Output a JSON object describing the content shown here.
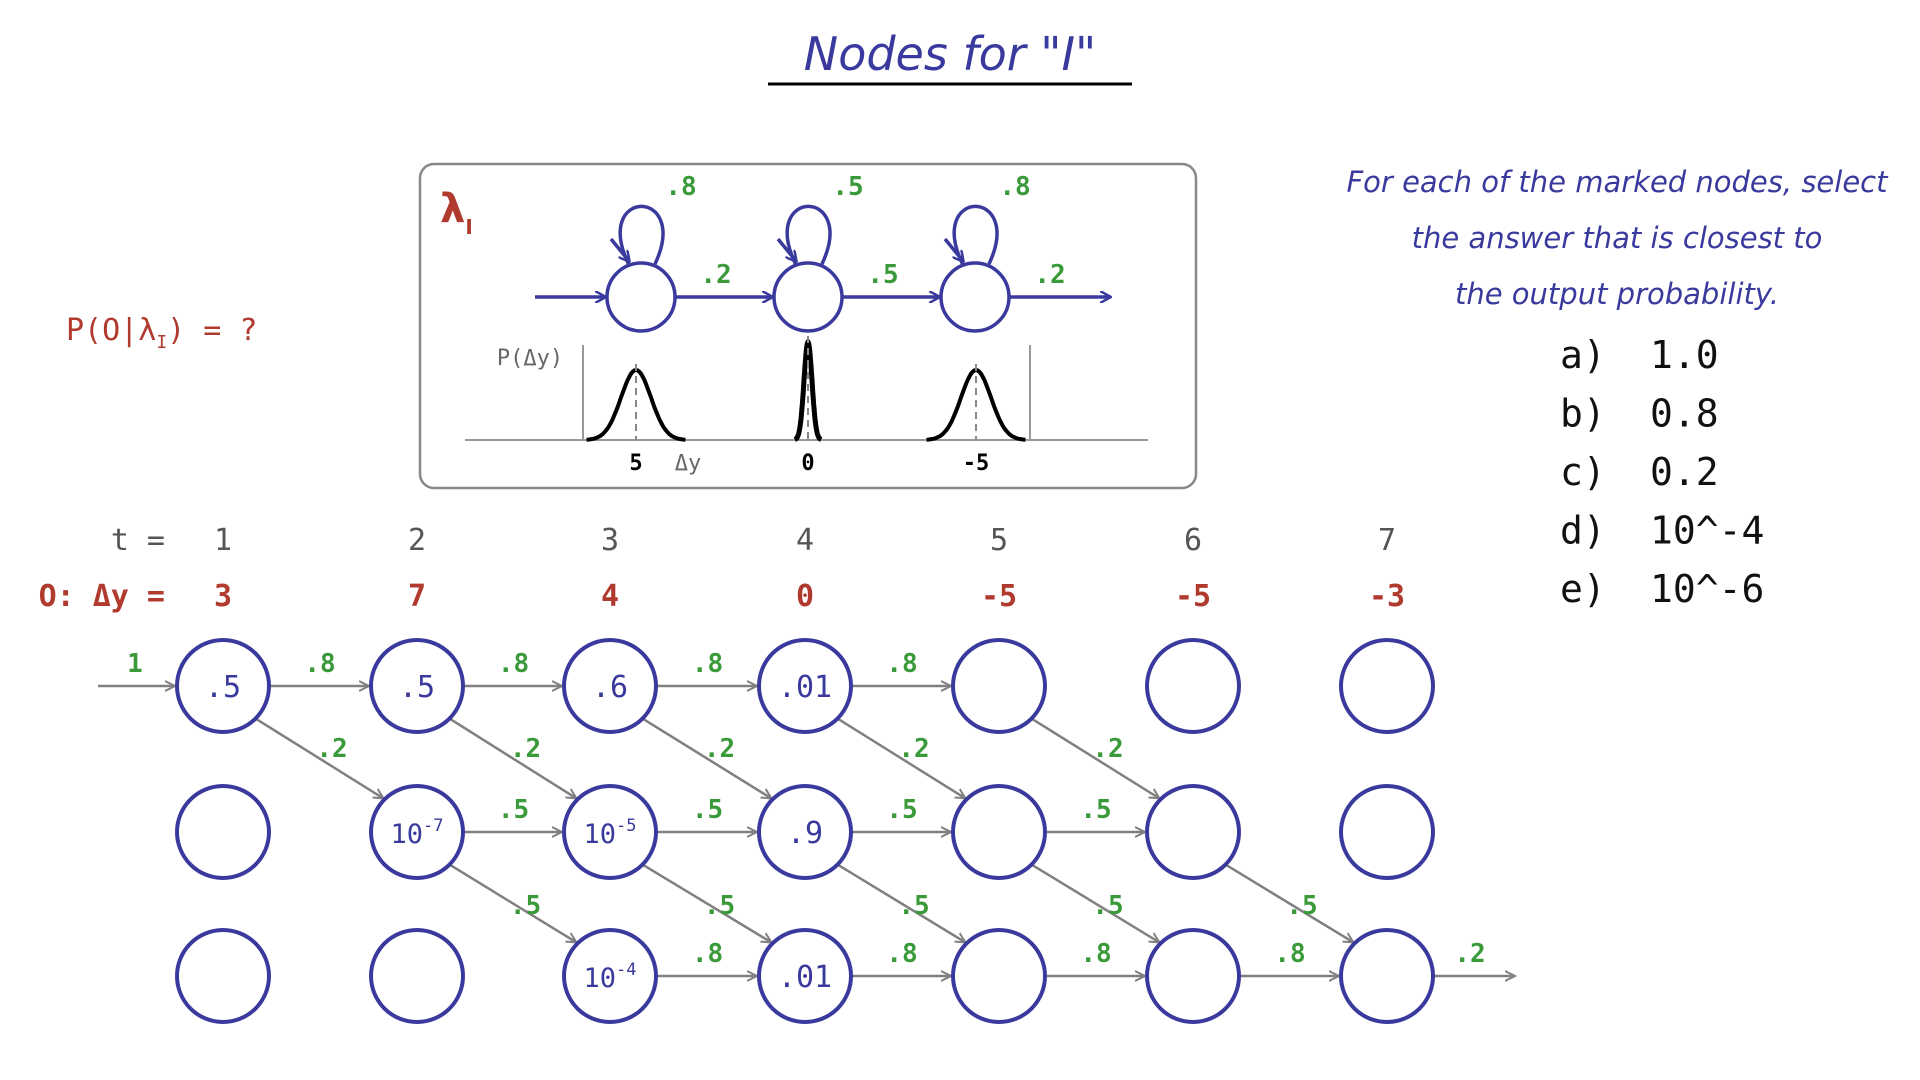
{
  "title": "Nodes for \"I\"",
  "question": "P(O|λ",
  "question_sub": "I",
  "question_tail": ") = ?",
  "model": {
    "label": "λ",
    "label_sub": "I",
    "self_probs": [
      ".8",
      ".5",
      ".8"
    ],
    "forward_probs": [
      ".2",
      ".5",
      ".2"
    ],
    "ylabel": "P(Δy)",
    "xlabel": "Δy",
    "means": [
      "5",
      "0",
      "-5"
    ]
  },
  "instructions": {
    "lines": [
      "For each of the marked nodes, select",
      "the answer that is closest to",
      "the output probability."
    ]
  },
  "options": [
    {
      "letter": "a)",
      "value": "1.0"
    },
    {
      "letter": "b)",
      "value": "0.8"
    },
    {
      "letter": "c)",
      "value": "0.2"
    },
    {
      "letter": "d)",
      "value": "10^-4"
    },
    {
      "letter": "e)",
      "value": "10^-6"
    }
  ],
  "trellis": {
    "t_label": "t =",
    "obs_label": "O: Δy =",
    "times": [
      "1",
      "2",
      "3",
      "4",
      "5",
      "6",
      "7"
    ],
    "observations": [
      "3",
      "7",
      "4",
      "0",
      "-5",
      "-5",
      "-3"
    ],
    "entry_prob": "1",
    "exit_prob": ".2",
    "row1_self": ".8",
    "row1_down": ".2",
    "row2_self": ".5",
    "row2_down": ".5",
    "row3_self": ".8",
    "node_values": {
      "r1": [
        ".5",
        ".5",
        ".6",
        ".01",
        "",
        "",
        ""
      ],
      "r2": [
        "",
        "10",
        "10",
        ".9",
        "",
        "",
        ""
      ],
      "r3": [
        "",
        "",
        "10",
        ".01",
        "",
        "",
        ""
      ]
    },
    "node_exponents": {
      "r2": [
        "",
        "-7",
        "-5",
        "",
        "",
        "",
        ""
      ],
      "r3": [
        "",
        "",
        "-4",
        "",
        "",
        "",
        ""
      ]
    }
  },
  "colors": {
    "blue": "#3a3a9e",
    "red": "#b03a2e",
    "green": "#3a9a3a",
    "gray": "#808080",
    "dark": "#555555"
  }
}
